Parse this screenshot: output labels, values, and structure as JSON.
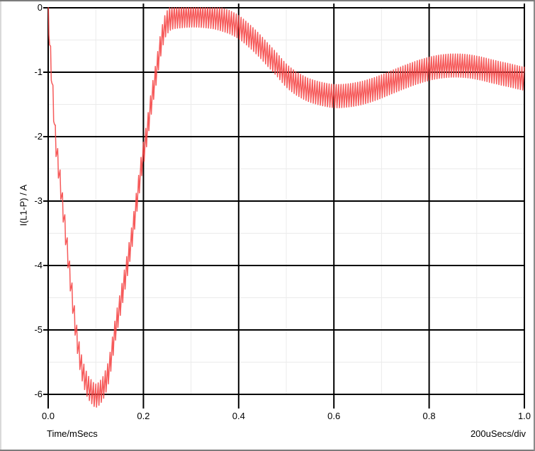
{
  "window": {
    "bg_color": "#ffffff",
    "border_color": "#7c7c7c"
  },
  "chart_data": {
    "type": "line",
    "title": "",
    "xlabel": "Time/mSecs",
    "x_per_div_label": "200uSecs/div",
    "ylabel": "I(L1-P) / A",
    "xlim": [
      0.0,
      1.0
    ],
    "ylim": [
      -6.2,
      0.0
    ],
    "x_major_step": 0.2,
    "x_minor_step": 0.1,
    "y_major_step": 1.0,
    "y_minor_step": 0.5,
    "x_tick_labels": [
      "0.0",
      "0.2",
      "0.4",
      "0.6",
      "0.8",
      "1.0"
    ],
    "y_tick_labels": [
      "0",
      "-1",
      "-2",
      "-3",
      "-4",
      "-5",
      "-6"
    ],
    "grid": {
      "major_color": "#000000",
      "minor_color": "#ebebeb",
      "legend": "off"
    },
    "series": [
      {
        "name": "I(L1-P)",
        "color": "#f54141",
        "ripple": {
          "period_ms": 0.005,
          "half_amplitude_A": 0.18,
          "duty": 0.7,
          "clamp_max_A": 0
        },
        "envelope_points": [
          [
            0.0,
            0.0
          ],
          [
            0.003,
            -0.55
          ],
          [
            0.008,
            -1.15
          ],
          [
            0.015,
            -2.0
          ],
          [
            0.022,
            -2.5
          ],
          [
            0.03,
            -3.05
          ],
          [
            0.04,
            -3.75
          ],
          [
            0.05,
            -4.45
          ],
          [
            0.058,
            -5.0
          ],
          [
            0.068,
            -5.5
          ],
          [
            0.08,
            -5.82
          ],
          [
            0.09,
            -5.95
          ],
          [
            0.1,
            -6.02
          ],
          [
            0.11,
            -5.96
          ],
          [
            0.118,
            -5.85
          ],
          [
            0.128,
            -5.6
          ],
          [
            0.141,
            -5.0
          ],
          [
            0.154,
            -4.5
          ],
          [
            0.166,
            -4.0
          ],
          [
            0.177,
            -3.5
          ],
          [
            0.188,
            -2.9
          ],
          [
            0.197,
            -2.4
          ],
          [
            0.206,
            -2.0
          ],
          [
            0.217,
            -1.45
          ],
          [
            0.227,
            -1.0
          ],
          [
            0.237,
            -0.55
          ],
          [
            0.246,
            -0.28
          ],
          [
            0.258,
            -0.16
          ],
          [
            0.28,
            -0.13
          ],
          [
            0.31,
            -0.12
          ],
          [
            0.35,
            -0.15
          ],
          [
            0.38,
            -0.22
          ],
          [
            0.4,
            -0.3
          ],
          [
            0.42,
            -0.42
          ],
          [
            0.44,
            -0.56
          ],
          [
            0.46,
            -0.72
          ],
          [
            0.48,
            -0.88
          ],
          [
            0.5,
            -1.05
          ],
          [
            0.52,
            -1.17
          ],
          [
            0.545,
            -1.27
          ],
          [
            0.57,
            -1.33
          ],
          [
            0.6,
            -1.37
          ],
          [
            0.63,
            -1.36
          ],
          [
            0.66,
            -1.32
          ],
          [
            0.69,
            -1.25
          ],
          [
            0.72,
            -1.16
          ],
          [
            0.75,
            -1.07
          ],
          [
            0.78,
            -0.99
          ],
          [
            0.81,
            -0.93
          ],
          [
            0.84,
            -0.9
          ],
          [
            0.87,
            -0.9
          ],
          [
            0.9,
            -0.93
          ],
          [
            0.94,
            -1.0
          ],
          [
            0.97,
            -1.05
          ],
          [
            1.0,
            -1.1
          ]
        ]
      }
    ]
  }
}
